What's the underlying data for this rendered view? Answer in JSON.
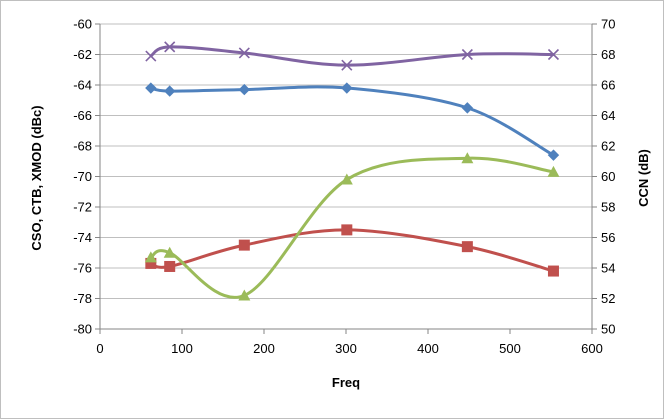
{
  "chart_data": {
    "type": "line",
    "xlabel": "Freq",
    "ylabel": "CSO, CTB, XMOD (dBc)",
    "y2label": "CCN (dB)",
    "xlim": [
      0,
      600
    ],
    "ylim": [
      -80,
      -60
    ],
    "y2lim": [
      50,
      70
    ],
    "xticks": [
      "0",
      "100",
      "200",
      "300",
      "400",
      "500",
      "600"
    ],
    "yticks": [
      "-60",
      "-62",
      "-64",
      "-66",
      "-68",
      "-70",
      "-72",
      "-74",
      "-76",
      "-78",
      "-80"
    ],
    "y2ticks": [
      "70",
      "68",
      "66",
      "64",
      "62",
      "60",
      "58",
      "56",
      "54",
      "52",
      "50"
    ],
    "grid": true,
    "series": [
      {
        "color": "#4f81bd",
        "marker": "diamond",
        "axis": "left",
        "x": [
          62,
          85,
          176,
          301,
          448,
          553
        ],
        "y": [
          -64.2,
          -64.4,
          -64.3,
          -64.2,
          -65.5,
          -68.6
        ]
      },
      {
        "color": "#c0504d",
        "marker": "square",
        "axis": "left",
        "x": [
          62,
          85,
          176,
          301,
          448,
          553
        ],
        "y": [
          -75.7,
          -75.9,
          -74.5,
          -73.5,
          -74.6,
          -76.2
        ]
      },
      {
        "color": "#9bbb59",
        "marker": "triangle",
        "axis": "left",
        "x": [
          62,
          85,
          176,
          301,
          448,
          553
        ],
        "y": [
          -75.3,
          -75.0,
          -77.8,
          -70.2,
          -68.8,
          -69.7
        ]
      },
      {
        "color": "#8064a2",
        "marker": "x",
        "axis": "left",
        "x": [
          62,
          85,
          176,
          301,
          448,
          553
        ],
        "y": [
          -62.1,
          -61.5,
          -61.9,
          -62.7,
          -62.0,
          -62.0
        ]
      }
    ]
  }
}
